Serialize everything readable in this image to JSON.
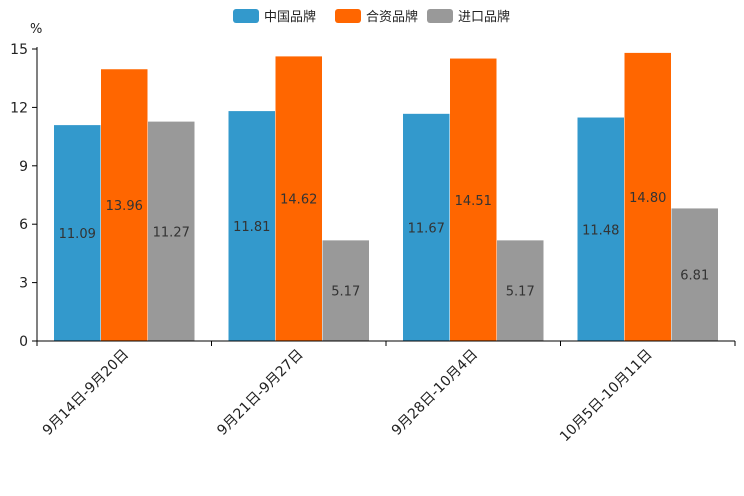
{
  "chart_data": {
    "type": "bar",
    "title": "",
    "xlabel": "",
    "ylabel": "%",
    "ylim": [
      0,
      15
    ],
    "yticks": [
      0,
      3,
      6,
      9,
      12,
      15
    ],
    "categories": [
      "9月14日-9月20日",
      "9月21日-9月27日",
      "9月28日-10月4日",
      "10月5日-10月11日"
    ],
    "series": [
      {
        "name": "中国品牌",
        "color": "#3399cc",
        "values": [
          11.09,
          11.81,
          11.67,
          11.48
        ],
        "labels": [
          "11.09",
          "11.81",
          "11.67",
          "11.48"
        ]
      },
      {
        "name": "合资品牌",
        "color": "#ff6600",
        "values": [
          13.96,
          14.62,
          14.51,
          14.8
        ],
        "labels": [
          "13.96",
          "14.62",
          "14.51",
          "14.80"
        ]
      },
      {
        "name": "进口品牌",
        "color": "#999999",
        "values": [
          11.27,
          5.17,
          5.17,
          6.81
        ],
        "labels": [
          "11.27",
          "5.17",
          "5.17",
          "6.81"
        ]
      }
    ],
    "legend_position": "top-center",
    "grid": false
  }
}
